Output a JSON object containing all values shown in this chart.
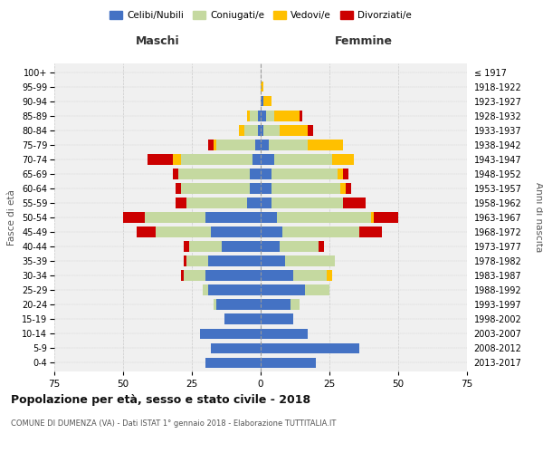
{
  "age_groups": [
    "0-4",
    "5-9",
    "10-14",
    "15-19",
    "20-24",
    "25-29",
    "30-34",
    "35-39",
    "40-44",
    "45-49",
    "50-54",
    "55-59",
    "60-64",
    "65-69",
    "70-74",
    "75-79",
    "80-84",
    "85-89",
    "90-94",
    "95-99",
    "100+"
  ],
  "birth_years": [
    "2013-2017",
    "2008-2012",
    "2003-2007",
    "1998-2002",
    "1993-1997",
    "1988-1992",
    "1983-1987",
    "1978-1982",
    "1973-1977",
    "1968-1972",
    "1963-1967",
    "1958-1962",
    "1953-1957",
    "1948-1952",
    "1943-1947",
    "1938-1942",
    "1933-1937",
    "1928-1932",
    "1923-1927",
    "1918-1922",
    "≤ 1917"
  ],
  "maschi": {
    "celibi": [
      20,
      18,
      22,
      13,
      16,
      19,
      20,
      19,
      14,
      18,
      20,
      5,
      4,
      4,
      3,
      2,
      1,
      1,
      0,
      0,
      0
    ],
    "coniugati": [
      0,
      0,
      0,
      0,
      1,
      2,
      8,
      8,
      12,
      20,
      22,
      22,
      25,
      26,
      26,
      14,
      5,
      3,
      0,
      0,
      0
    ],
    "vedovi": [
      0,
      0,
      0,
      0,
      0,
      0,
      0,
      0,
      0,
      0,
      0,
      0,
      0,
      0,
      3,
      1,
      2,
      1,
      0,
      0,
      0
    ],
    "divorziati": [
      0,
      0,
      0,
      0,
      0,
      0,
      1,
      1,
      2,
      7,
      8,
      4,
      2,
      2,
      9,
      2,
      0,
      0,
      0,
      0,
      0
    ]
  },
  "femmine": {
    "nubili": [
      20,
      36,
      17,
      12,
      11,
      16,
      12,
      9,
      7,
      8,
      6,
      4,
      4,
      4,
      5,
      3,
      1,
      2,
      1,
      0,
      0
    ],
    "coniugate": [
      0,
      0,
      0,
      0,
      3,
      9,
      12,
      18,
      14,
      28,
      34,
      26,
      25,
      24,
      21,
      14,
      6,
      3,
      0,
      0,
      0
    ],
    "vedove": [
      0,
      0,
      0,
      0,
      0,
      0,
      2,
      0,
      0,
      0,
      1,
      0,
      2,
      2,
      8,
      13,
      10,
      9,
      3,
      1,
      0
    ],
    "divorziate": [
      0,
      0,
      0,
      0,
      0,
      0,
      0,
      0,
      2,
      8,
      9,
      8,
      2,
      2,
      0,
      0,
      2,
      1,
      0,
      0,
      0
    ]
  },
  "colors": {
    "celibi": "#4472c4",
    "coniugati": "#c5d9a0",
    "vedovi": "#ffc000",
    "divorziati": "#cc0000"
  },
  "title": "Popolazione per età, sesso e stato civile - 2018",
  "subtitle": "COMUNE DI DUMENZA (VA) - Dati ISTAT 1° gennaio 2018 - Elaborazione TUTTITALIA.IT",
  "xlabel_maschi": "Maschi",
  "xlabel_femmine": "Femmine",
  "ylabel": "Fasce di età",
  "ylabel_right": "Anni di nascita",
  "xlim": 75,
  "legend_labels": [
    "Celibi/Nubili",
    "Coniugati/e",
    "Vedovi/e",
    "Divorziati/e"
  ],
  "background_color": "#ffffff",
  "plot_bg": "#f0f0f0",
  "grid_color": "#cccccc"
}
